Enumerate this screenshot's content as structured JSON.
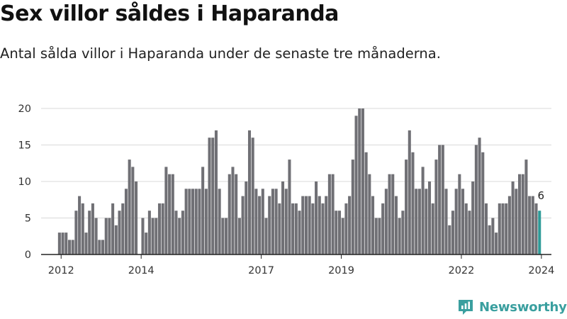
{
  "header": {
    "title": "Sex villor såldes i Haparanda",
    "subtitle": "Antal sålda villor i Haparanda under de senaste tre månaderna."
  },
  "brand": {
    "name": "Newsworthy"
  },
  "colors": {
    "bar": "#707075",
    "highlight": "#2e9b98",
    "grid": "#d9d9d9",
    "axis": "#222222"
  },
  "chart_data": {
    "type": "bar",
    "title": "Sex villor såldes i Haparanda",
    "subtitle": "Antal sålda villor i Haparanda under de senaste tre månaderna.",
    "xlabel": "",
    "ylabel": "",
    "ylim": [
      0,
      20
    ],
    "yticks": [
      0,
      5,
      10,
      15,
      20
    ],
    "grid": true,
    "x_range": [
      2011.5,
      2024.25
    ],
    "x_start": 2011.958,
    "x_step": 0.0833,
    "xticks": [
      {
        "label": "2012",
        "x": 2012.0
      },
      {
        "label": "2014",
        "x": 2014.0
      },
      {
        "label": "2017",
        "x": 2017.0
      },
      {
        "label": "2019",
        "x": 2019.0
      },
      {
        "label": "2022",
        "x": 2022.0
      },
      {
        "label": "2024",
        "x": 2024.0
      }
    ],
    "highlight_label": "6",
    "values": [
      3,
      3,
      3,
      2,
      2,
      6,
      8,
      7,
      3,
      6,
      7,
      5,
      2,
      2,
      5,
      5,
      7,
      4,
      6,
      7,
      9,
      13,
      12,
      10,
      0,
      5,
      3,
      6,
      5,
      5,
      7,
      7,
      12,
      11,
      11,
      6,
      5,
      6,
      9,
      9,
      9,
      9,
      9,
      12,
      9,
      16,
      16,
      17,
      9,
      5,
      5,
      11,
      12,
      11,
      5,
      8,
      10,
      17,
      16,
      9,
      8,
      9,
      5,
      8,
      9,
      9,
      7,
      10,
      9,
      13,
      7,
      7,
      6,
      8,
      8,
      8,
      7,
      10,
      8,
      7,
      8,
      11,
      11,
      6,
      6,
      5,
      7,
      8,
      13,
      19,
      20,
      20,
      14,
      11,
      8,
      5,
      5,
      7,
      9,
      11,
      11,
      8,
      5,
      6,
      13,
      17,
      14,
      9,
      9,
      12,
      9,
      10,
      7,
      13,
      15,
      15,
      9,
      4,
      6,
      9,
      11,
      9,
      7,
      6,
      10,
      15,
      16,
      14,
      7,
      4,
      5,
      3,
      7,
      7,
      7,
      8,
      10,
      9,
      11,
      11,
      13,
      8,
      8,
      7,
      6
    ]
  }
}
